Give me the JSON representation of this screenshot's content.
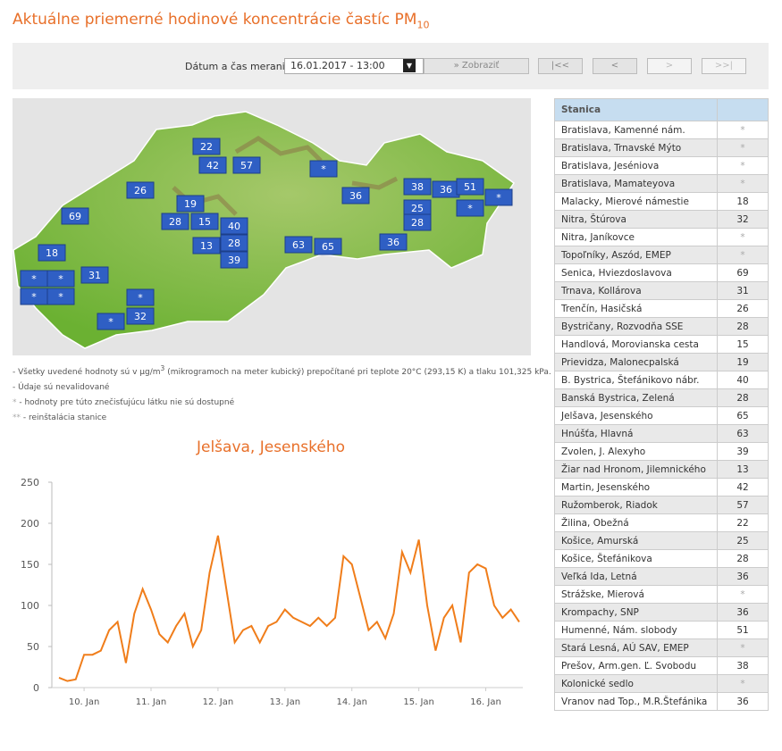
{
  "header": {
    "title": "Aktuálne priemerné hodinové koncentrácie častíc PM",
    "title_sub": "10"
  },
  "form": {
    "label": "Dátum a čas merania:",
    "select_value": "16.01.2017 - 13:00",
    "button": "Zobraziť",
    "nav": [
      "|<<",
      "<",
      ">",
      ">>|"
    ]
  },
  "map": {
    "markers": [
      "22",
      "42",
      "57",
      "*",
      "26",
      "36",
      "38",
      "36",
      "51",
      "*",
      "19",
      "25",
      "*",
      "69",
      "28",
      "15",
      "40",
      "28",
      "28",
      "13",
      "63",
      "65",
      "36",
      "39",
      "18",
      "31",
      "*",
      "*",
      "*",
      "*",
      "*",
      "32",
      "*"
    ]
  },
  "notes": {
    "units_a": "- Všetky uvedené hodnoty sú v µg/m",
    "units_sup": "3",
    "units_b": " (mikrogramoch na meter kubický) prepočítané pri teplote 20°C (293,15 K) a tlaku 101,325 kPa.",
    "unvalidated": "- Údaje sú nevalidované",
    "star": "*",
    "star_text": " - hodnoty pre túto znečisťujúcu látku nie sú dostupné",
    "dstar": "**",
    "dstar_text": " - reinštalácia stanice"
  },
  "table": {
    "header": [
      "Stanica",
      ""
    ],
    "rows": [
      [
        "Bratislava, Kamenné nám.",
        "*"
      ],
      [
        "Bratislava, Trnavské Mýto",
        "*"
      ],
      [
        "Bratislava, Jeséniova",
        "*"
      ],
      [
        "Bratislava, Mamateyova",
        "*"
      ],
      [
        "Malacky, Mierové námestie",
        18
      ],
      [
        "Nitra, Štúrova",
        32
      ],
      [
        "Nitra, Janíkovce",
        "*"
      ],
      [
        "Topoľníky, Aszód, EMEP",
        "*"
      ],
      [
        "Senica, Hviezdoslavova",
        69
      ],
      [
        "Trnava, Kollárova",
        31
      ],
      [
        "Trenčín, Hasičská",
        26
      ],
      [
        "Bystričany, Rozvodňa SSE",
        28
      ],
      [
        "Handlová, Morovianska cesta",
        15
      ],
      [
        "Prievidza, Malonecpalská",
        19
      ],
      [
        "B. Bystrica, Štefánikovo nábr.",
        40
      ],
      [
        "Banská Bystrica, Zelená",
        28
      ],
      [
        "Jelšava, Jesenského",
        65
      ],
      [
        "Hnúšťa, Hlavná",
        63
      ],
      [
        "Zvolen, J. Alexyho",
        39
      ],
      [
        "Žiar nad Hronom, Jilemnického",
        13
      ],
      [
        "Martin, Jesenského",
        42
      ],
      [
        "Ružomberok, Riadok",
        57
      ],
      [
        "Žilina, Obežná",
        22
      ],
      [
        "Košice, Amurská",
        25
      ],
      [
        "Košice, Štefánikova",
        28
      ],
      [
        "Veľká Ida, Letná",
        36
      ],
      [
        "Strážske, Mierová",
        "*"
      ],
      [
        "Krompachy, SNP",
        36
      ],
      [
        "Humenné, Nám. slobody",
        51
      ],
      [
        "Stará Lesná, AÚ SAV, EMEP",
        "*"
      ],
      [
        "Prešov, Arm.gen. Ľ. Svobodu",
        38
      ],
      [
        "Kolonické sedlo",
        "*"
      ],
      [
        "Vranov nad Top., M.R.Štefánika",
        36
      ]
    ]
  },
  "chart_data": {
    "type": "line",
    "title": "Jelšava, Jesenského",
    "color": "#f07d1a",
    "categories": [
      null,
      null,
      null,
      "10. Jan",
      null,
      null,
      null,
      null,
      null,
      null,
      null,
      "11. Jan",
      null,
      null,
      null,
      null,
      null,
      null,
      null,
      "12. Jan",
      null,
      null,
      null,
      null,
      null,
      null,
      null,
      "13. Jan",
      null,
      null,
      null,
      null,
      null,
      null,
      null,
      "14. Jan",
      null,
      null,
      null,
      null,
      null,
      null,
      null,
      "15. Jan",
      null,
      null,
      null,
      null,
      null,
      null,
      null,
      "16. Jan",
      null,
      null,
      null,
      null
    ],
    "values": [
      12,
      8,
      10,
      40,
      40,
      45,
      70,
      80,
      30,
      90,
      120,
      95,
      65,
      55,
      75,
      90,
      50,
      70,
      140,
      185,
      120,
      55,
      70,
      75,
      55,
      75,
      80,
      95,
      85,
      80,
      75,
      85,
      75,
      85,
      160,
      150,
      110,
      70,
      80,
      60,
      90,
      165,
      140,
      180,
      100,
      45,
      85,
      100,
      55,
      140,
      150,
      145,
      100,
      85,
      95,
      80
    ],
    "ylim": [
      0,
      250
    ],
    "yticks": [
      0,
      50,
      100,
      150,
      200,
      250
    ],
    "grid": false
  }
}
